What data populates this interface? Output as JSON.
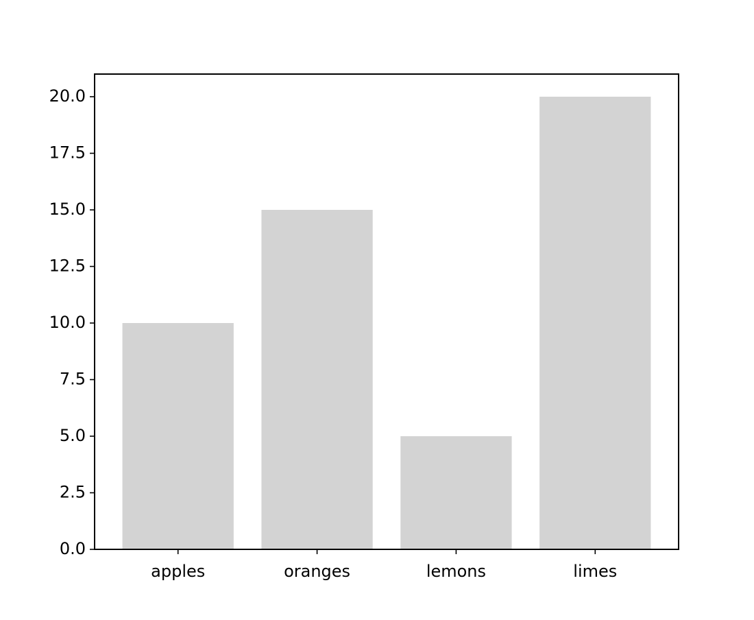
{
  "chart_data": {
    "type": "bar",
    "categories": [
      "apples",
      "oranges",
      "lemons",
      "limes"
    ],
    "values": [
      10,
      15,
      5,
      20
    ],
    "title": "",
    "xlabel": "",
    "ylabel": "",
    "ylim": [
      0,
      21
    ],
    "yticks": [
      0.0,
      2.5,
      5.0,
      7.5,
      10.0,
      12.5,
      15.0,
      17.5,
      20.0
    ],
    "ytick_labels": [
      "0.0",
      "2.5",
      "5.0",
      "7.5",
      "10.0",
      "12.5",
      "15.0",
      "17.5",
      "20.0"
    ],
    "grid": false,
    "legend": "none",
    "bar_color": "#d3d3d3",
    "axis_color": "#000000"
  }
}
